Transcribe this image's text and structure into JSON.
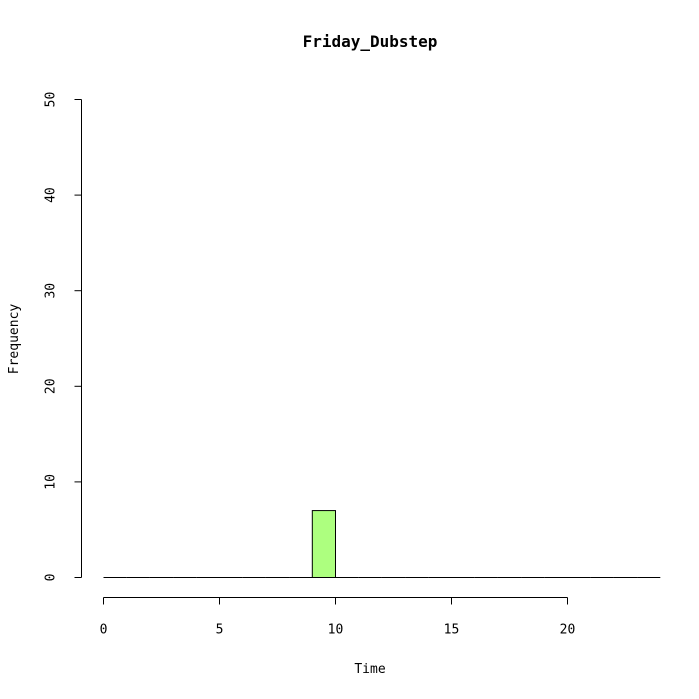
{
  "chart_data": {
    "type": "bar",
    "title": "Friday_Dubstep",
    "xlabel": "Time",
    "ylabel": "Frequency",
    "xlim": [
      0,
      24
    ],
    "ylim": [
      0,
      50
    ],
    "x_ticks": [
      0,
      5,
      10,
      15,
      20
    ],
    "y_ticks": [
      0,
      10,
      20,
      30,
      40,
      50
    ],
    "bins": [
      {
        "start": 0,
        "end": 1,
        "value": 0
      },
      {
        "start": 1,
        "end": 2,
        "value": 0
      },
      {
        "start": 2,
        "end": 3,
        "value": 0
      },
      {
        "start": 3,
        "end": 4,
        "value": 0
      },
      {
        "start": 4,
        "end": 5,
        "value": 0
      },
      {
        "start": 5,
        "end": 6,
        "value": 0
      },
      {
        "start": 6,
        "end": 7,
        "value": 0
      },
      {
        "start": 7,
        "end": 8,
        "value": 0
      },
      {
        "start": 8,
        "end": 9,
        "value": 0
      },
      {
        "start": 9,
        "end": 10,
        "value": 7
      },
      {
        "start": 10,
        "end": 11,
        "value": 0
      },
      {
        "start": 11,
        "end": 12,
        "value": 0
      },
      {
        "start": 12,
        "end": 13,
        "value": 0
      },
      {
        "start": 13,
        "end": 14,
        "value": 0
      },
      {
        "start": 14,
        "end": 15,
        "value": 0
      },
      {
        "start": 15,
        "end": 16,
        "value": 0
      },
      {
        "start": 16,
        "end": 17,
        "value": 0
      },
      {
        "start": 17,
        "end": 18,
        "value": 0
      },
      {
        "start": 18,
        "end": 19,
        "value": 0
      },
      {
        "start": 19,
        "end": 20,
        "value": 0
      },
      {
        "start": 20,
        "end": 21,
        "value": 0
      },
      {
        "start": 21,
        "end": 22,
        "value": 0
      },
      {
        "start": 22,
        "end": 23,
        "value": 0
      },
      {
        "start": 23,
        "end": 24,
        "value": 0
      }
    ],
    "bar_color": "#adff7f",
    "grid": false,
    "legend": "none"
  }
}
